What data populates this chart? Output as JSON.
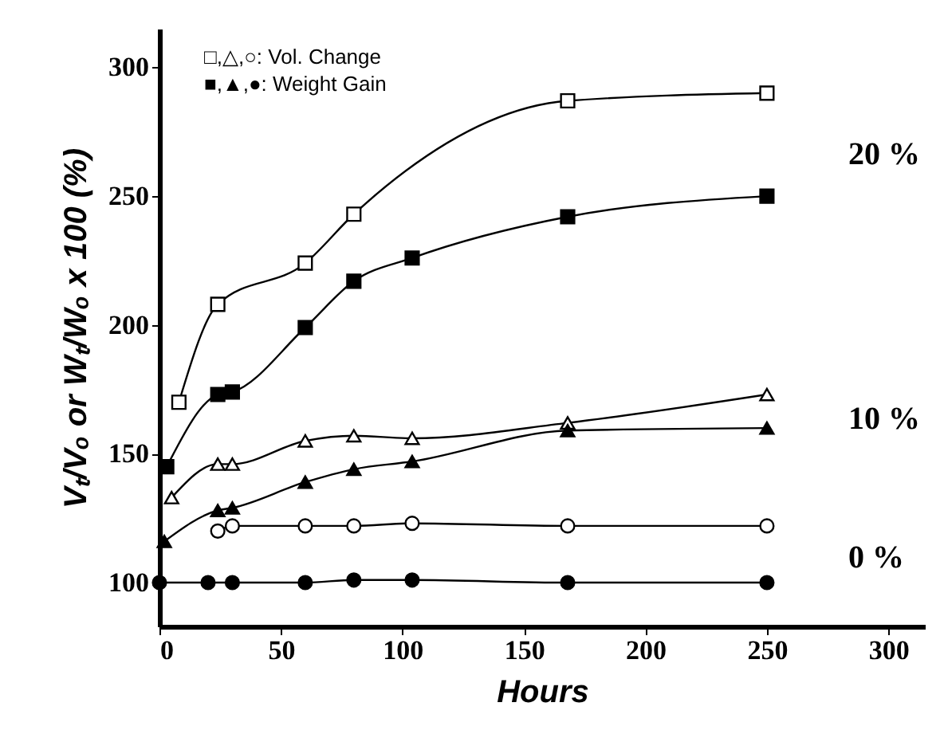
{
  "chart_data": {
    "type": "line",
    "xlabel": "Hours",
    "ylabel": "Vₜ/Vₒ or Wₜ/Wₒ x 100 (%)",
    "xlim": [
      0,
      315
    ],
    "ylim": [
      83,
      315
    ],
    "xticks": [
      0,
      50,
      100,
      150,
      200,
      250,
      300
    ],
    "yticks": [
      100,
      150,
      200,
      250,
      300
    ],
    "grid": false,
    "annotations": [
      "□,△,○: Vol. Change",
      "■,▲,●: Weight Gain",
      "20 %",
      "10 %",
      "0 %"
    ],
    "series": [
      {
        "color": "#ffffff",
        "marker": "square",
        "x": [
          8,
          24,
          60,
          80,
          168,
          250
        ],
        "values": [
          170,
          208,
          224,
          243,
          287,
          290
        ]
      },
      {
        "color": "#000000",
        "marker": "square",
        "x": [
          3,
          24,
          30,
          60,
          80,
          104,
          168,
          250
        ],
        "values": [
          145,
          173,
          174,
          199,
          217,
          226,
          242,
          250
        ]
      },
      {
        "color": "#ffffff",
        "marker": "triangle",
        "x": [
          5,
          24,
          30,
          60,
          80,
          104,
          168,
          250
        ],
        "values": [
          133,
          146,
          146,
          155,
          157,
          156,
          162,
          173
        ]
      },
      {
        "color": "#000000",
        "marker": "triangle",
        "x": [
          2,
          24,
          30,
          60,
          80,
          104,
          168,
          250
        ],
        "values": [
          116,
          128,
          129,
          139,
          144,
          147,
          159,
          160
        ]
      },
      {
        "color": "#ffffff",
        "marker": "circle",
        "x": [
          24,
          30,
          60,
          80,
          104,
          168,
          250
        ],
        "values": [
          120,
          122,
          122,
          122,
          123,
          122,
          122
        ]
      },
      {
        "color": "#000000",
        "marker": "circle",
        "x": [
          0,
          20,
          30,
          60,
          80,
          104,
          168,
          250
        ],
        "values": [
          100,
          100,
          100,
          100,
          101,
          101,
          100,
          100
        ]
      }
    ]
  }
}
